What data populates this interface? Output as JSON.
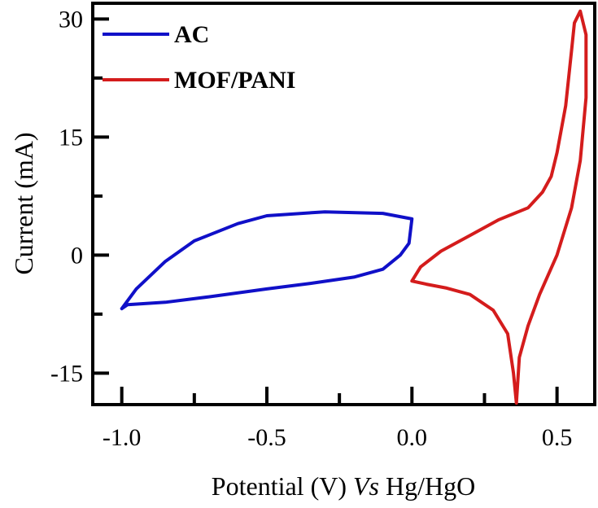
{
  "chart_data": {
    "type": "line",
    "title": "",
    "xlabel_parts": [
      "Potential (V) ",
      "Vs",
      " Hg/HgO"
    ],
    "ylabel": "Current (mA)",
    "xlim": [
      -1.1,
      0.63
    ],
    "ylim": [
      -19,
      32
    ],
    "x_ticks": [
      -1.0,
      -0.5,
      0.0,
      0.5
    ],
    "x_tick_labels": [
      "-1.0",
      "-0.5",
      "0.0",
      "0.5"
    ],
    "x_minor_ticks": [
      -0.75,
      -0.25,
      0.25
    ],
    "y_ticks": [
      -15,
      0,
      15,
      30
    ],
    "y_tick_labels": [
      "-15",
      "0",
      "15",
      "30"
    ],
    "y_minor_ticks": [
      -7.5,
      7.5,
      22.5
    ],
    "grid": false,
    "legend_position": "top-left",
    "series": [
      {
        "name": "AC",
        "color": "#1010c8",
        "x": [
          -1.0,
          -0.95,
          -0.85,
          -0.75,
          -0.6,
          -0.5,
          -0.3,
          -0.1,
          0.0,
          -0.01,
          -0.04,
          -0.1,
          -0.2,
          -0.35,
          -0.5,
          -0.7,
          -0.85,
          -0.98,
          -1.0
        ],
        "y": [
          -6.8,
          -4.3,
          -0.8,
          1.8,
          4.0,
          5.0,
          5.5,
          5.3,
          4.6,
          1.5,
          0.0,
          -1.8,
          -2.8,
          -3.6,
          -4.3,
          -5.3,
          -6.0,
          -6.3,
          -6.8
        ]
      },
      {
        "name": "MOF/PANI",
        "color": "#d41c1c",
        "x": [
          0.0,
          0.03,
          0.1,
          0.2,
          0.3,
          0.4,
          0.45,
          0.48,
          0.5,
          0.53,
          0.55,
          0.56,
          0.58,
          0.6,
          0.6,
          0.58,
          0.55,
          0.5,
          0.44,
          0.4,
          0.37,
          0.36,
          0.35,
          0.33,
          0.28,
          0.2,
          0.12,
          0.05,
          0.0
        ],
        "y": [
          -3.3,
          -1.5,
          0.5,
          2.5,
          4.5,
          6.0,
          8.0,
          10.0,
          13.0,
          19.0,
          26.0,
          29.5,
          31.0,
          28.0,
          20.0,
          12.0,
          6.0,
          0.0,
          -5.0,
          -9.0,
          -13.0,
          -18.8,
          -15.0,
          -10.0,
          -7.0,
          -5.0,
          -4.2,
          -3.7,
          -3.3
        ]
      }
    ]
  }
}
